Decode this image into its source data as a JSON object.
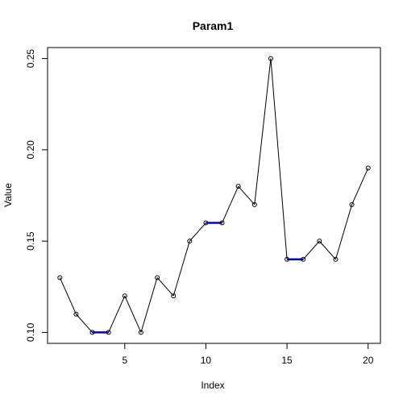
{
  "chart_data": {
    "type": "line",
    "title": "Param1",
    "xlabel": "Index",
    "ylabel": "Value",
    "xlim": [
      0.24,
      20.76
    ],
    "ylim": [
      0.094,
      0.256
    ],
    "xticks": [
      5,
      10,
      15,
      20
    ],
    "xtick_labels": [
      "5",
      "10",
      "15",
      "20"
    ],
    "yticks": [
      0.1,
      0.15,
      0.2,
      0.25
    ],
    "ytick_labels": [
      "0.10",
      "0.15",
      "0.20",
      "0.25"
    ],
    "grid": false,
    "line_color": "#000000",
    "highlight_color": "#0000cd",
    "x": [
      1,
      2,
      3,
      4,
      5,
      6,
      7,
      8,
      9,
      10,
      11,
      12,
      13,
      14,
      15,
      16,
      17,
      18,
      19,
      20
    ],
    "values": [
      0.13,
      0.11,
      0.1,
      0.1,
      0.12,
      0.1,
      0.13,
      0.12,
      0.15,
      0.16,
      0.16,
      0.18,
      0.17,
      0.25,
      0.14,
      0.14,
      0.15,
      0.14,
      0.17,
      0.19
    ],
    "highlighted_segments": [
      [
        3,
        4
      ],
      [
        10,
        11
      ],
      [
        15,
        16
      ]
    ]
  }
}
